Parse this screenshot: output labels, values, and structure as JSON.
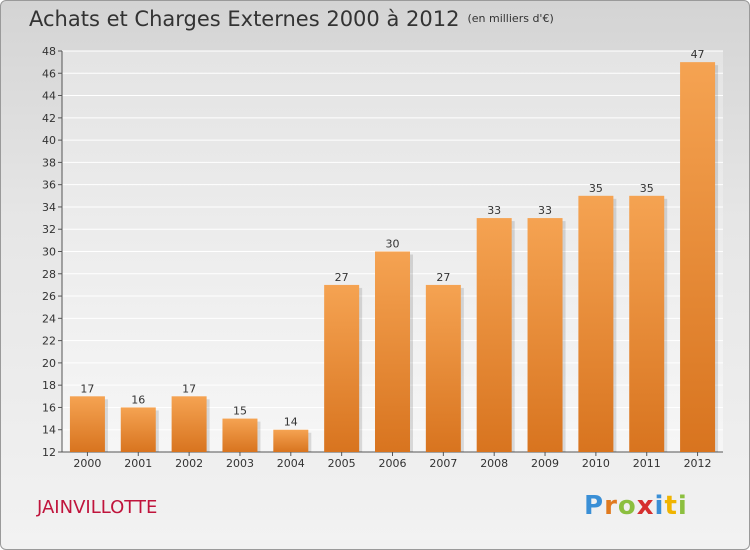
{
  "title": "Achats et Charges Externes 2000 à 2012",
  "subtitle": "(en milliers d'€)",
  "commune": "JAINVILLOTTE",
  "logo": {
    "text": "Proxiti",
    "letters": [
      "P",
      "r",
      "o",
      "x",
      "i",
      "t",
      "i"
    ]
  },
  "colors": {
    "bar_light": "#f5a352",
    "bar_dark": "#d8741f",
    "commune": "#c0143c"
  },
  "chart_data": {
    "type": "bar",
    "categories": [
      "2000",
      "2001",
      "2002",
      "2003",
      "2004",
      "2005",
      "2006",
      "2007",
      "2008",
      "2009",
      "2010",
      "2011",
      "2012"
    ],
    "values": [
      17,
      16,
      17,
      15,
      14,
      27,
      30,
      27,
      33,
      33,
      35,
      35,
      47
    ],
    "ylim": [
      12,
      48
    ],
    "yticks": [
      12,
      14,
      16,
      18,
      20,
      22,
      24,
      26,
      28,
      30,
      32,
      34,
      36,
      38,
      40,
      42,
      44,
      46,
      48
    ],
    "grid": true,
    "title": "Achats et Charges Externes 2000 à 2012",
    "xlabel": "",
    "ylabel": ""
  }
}
